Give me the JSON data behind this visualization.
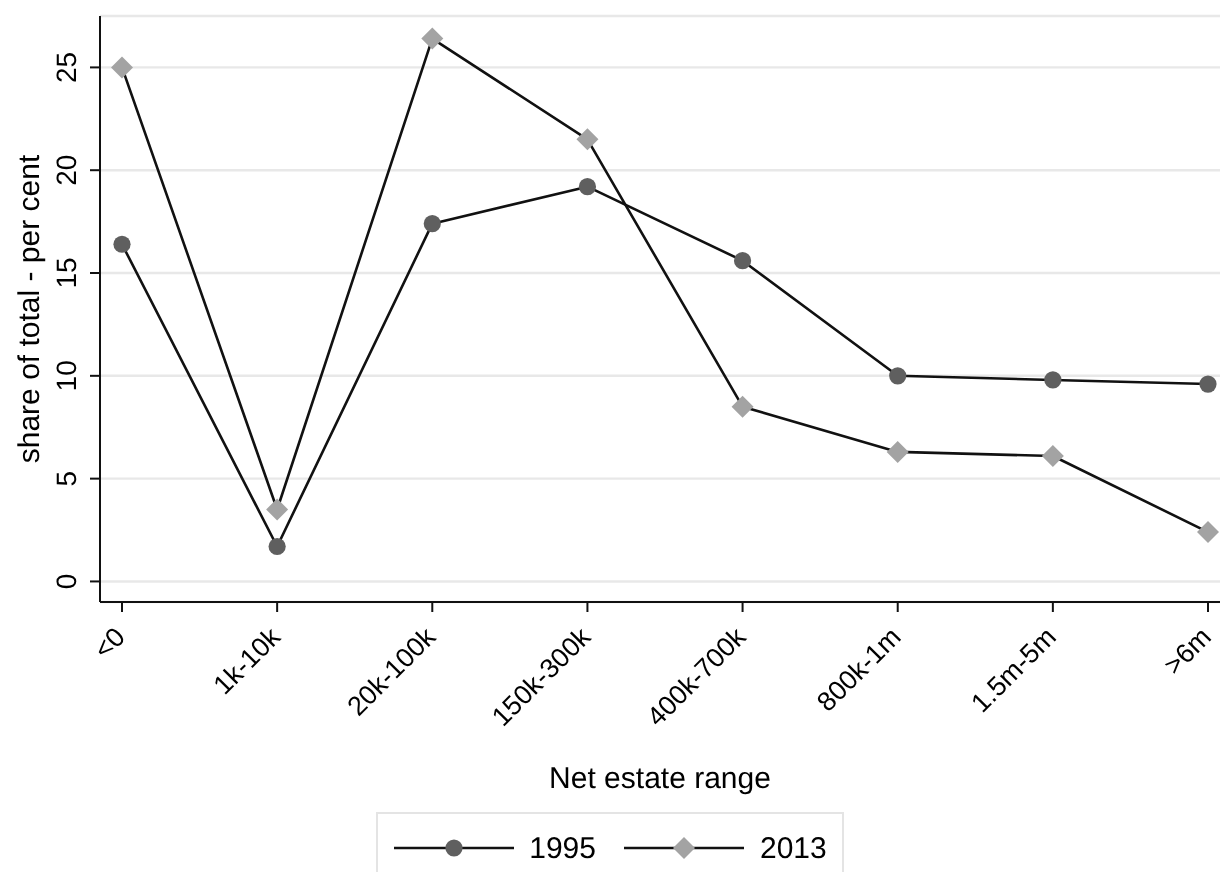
{
  "chart_data": {
    "type": "line",
    "xlabel": "Net estate range",
    "ylabel": "share of total - per cent",
    "categories": [
      "<0",
      "1k-10k",
      "20k-100k",
      "150k-300k",
      "400k-700k",
      "800k-1m",
      "1.5m-5m",
      ">6m"
    ],
    "series": [
      {
        "name": "1995",
        "color": "#5f5f5f",
        "marker": "circle",
        "values": [
          16.4,
          1.7,
          17.4,
          19.2,
          15.6,
          10.0,
          9.8,
          9.6
        ]
      },
      {
        "name": "2013",
        "color": "#a3a3a3",
        "marker": "diamond",
        "values": [
          25.0,
          3.5,
          26.4,
          21.5,
          8.5,
          6.3,
          6.1,
          2.4
        ]
      }
    ],
    "ylim": [
      -1,
      27.5
    ],
    "yticks": [
      0,
      5,
      10,
      15,
      20,
      25
    ],
    "grid": "y",
    "legend": "bottom",
    "line_style": "solid"
  }
}
